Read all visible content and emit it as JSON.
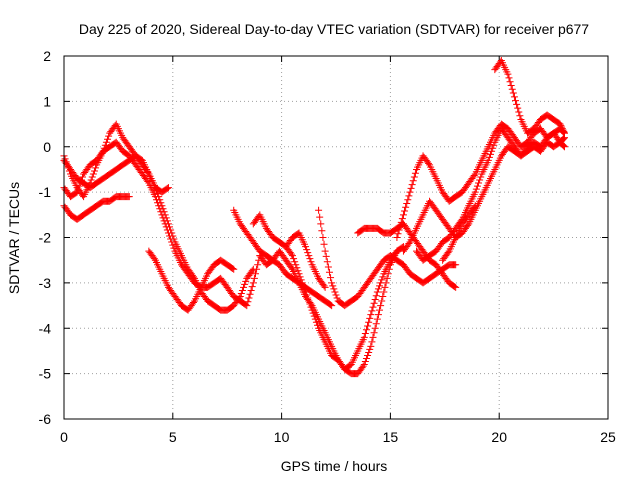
{
  "chart_data": {
    "type": "scatter",
    "title": "Day 225 of 2020, Sidereal Day-to-day VTEC variation (SDTVAR) for receiver p677",
    "xlabel": "GPS time / hours",
    "ylabel": "SDTVAR / TECUs",
    "xlim": [
      0,
      25
    ],
    "ylim": [
      -6,
      2
    ],
    "xticks": [
      0,
      5,
      10,
      15,
      20,
      25
    ],
    "yticks": [
      -6,
      -5,
      -4,
      -3,
      -2,
      -1,
      0,
      1,
      2
    ],
    "grid": true,
    "marker": "+",
    "color": "#ff0000",
    "series": [
      {
        "x": [
          0.0,
          0.3,
          0.6,
          0.9,
          1.2,
          1.5,
          1.8,
          2.1,
          2.4,
          2.7,
          3.0,
          3.3,
          3.6,
          3.9,
          4.2,
          4.5,
          4.8,
          5.1,
          5.4,
          5.7,
          6.0,
          6.3,
          6.6,
          6.9,
          7.2,
          7.5,
          7.8,
          8.1,
          8.4,
          8.7,
          9.0
        ],
        "y": [
          -0.9,
          -1.1,
          -1.0,
          -0.6,
          -0.4,
          -0.3,
          -0.1,
          0.0,
          0.1,
          -0.1,
          -0.2,
          -0.4,
          -0.6,
          -0.8,
          -1.1,
          -1.5,
          -1.9,
          -2.3,
          -2.6,
          -2.8,
          -3.0,
          -3.1,
          -3.1,
          -3.0,
          -2.9,
          -3.1,
          -3.3,
          -3.4,
          -3.5,
          -3.0,
          -2.4
        ]
      },
      {
        "x": [
          0.0,
          0.3,
          0.6,
          0.9,
          1.2,
          1.5,
          1.8,
          2.1,
          2.4,
          2.7,
          3.0,
          3.3,
          3.6,
          3.9,
          4.2,
          4.5,
          4.8,
          5.1,
          5.4,
          5.7,
          6.0,
          6.3,
          6.6,
          6.9,
          7.2,
          7.5,
          7.8,
          8.1,
          8.4,
          8.7
        ],
        "y": [
          -0.2,
          -0.6,
          -0.9,
          -1.1,
          -0.8,
          -0.4,
          -0.1,
          0.3,
          0.5,
          0.2,
          0.0,
          -0.2,
          -0.4,
          -0.6,
          -0.9,
          -1.3,
          -1.7,
          -2.1,
          -2.4,
          -2.7,
          -2.9,
          -3.2,
          -3.4,
          -3.5,
          -3.6,
          -3.6,
          -3.5,
          -3.3,
          -2.9,
          -2.7
        ]
      },
      {
        "x": [
          0.0,
          0.3,
          0.6,
          0.9,
          1.2,
          1.5,
          1.8,
          2.1,
          2.4,
          2.7,
          3.0
        ],
        "y": [
          -1.3,
          -1.5,
          -1.6,
          -1.5,
          -1.4,
          -1.3,
          -1.2,
          -1.2,
          -1.1,
          -1.1,
          -1.1
        ]
      },
      {
        "x": [
          0.0,
          0.3,
          0.6,
          0.9,
          1.2,
          1.5,
          1.8,
          2.1,
          2.4,
          2.7,
          3.0,
          3.3,
          3.6,
          3.9,
          4.2,
          4.5,
          4.8
        ],
        "y": [
          -0.3,
          -0.5,
          -0.7,
          -0.8,
          -0.9,
          -0.8,
          -0.7,
          -0.6,
          -0.5,
          -0.4,
          -0.3,
          -0.2,
          -0.3,
          -0.6,
          -0.9,
          -1.0,
          -0.9
        ]
      },
      {
        "x": [
          3.9,
          4.2,
          4.5,
          4.8,
          5.1,
          5.4,
          5.7,
          6.0,
          6.3,
          6.6,
          6.9,
          7.2,
          7.5,
          7.8
        ],
        "y": [
          -2.3,
          -2.5,
          -2.8,
          -3.1,
          -3.3,
          -3.5,
          -3.6,
          -3.4,
          -3.1,
          -2.8,
          -2.6,
          -2.5,
          -2.6,
          -2.7
        ]
      },
      {
        "x": [
          7.8,
          8.1,
          8.4,
          8.7,
          9.0,
          9.3,
          9.6,
          9.9,
          10.2,
          10.5,
          10.8,
          11.1,
          11.4,
          11.7,
          12.0,
          12.3
        ],
        "y": [
          -1.4,
          -1.7,
          -1.9,
          -2.1,
          -2.3,
          -2.4,
          -2.5,
          -2.6,
          -2.8,
          -2.9,
          -3.0,
          -3.1,
          -3.2,
          -3.3,
          -3.4,
          -3.5
        ]
      },
      {
        "x": [
          8.7,
          9.0,
          9.3,
          9.6,
          9.9,
          10.2,
          10.5,
          10.8,
          11.1,
          11.4,
          11.7,
          12.0,
          12.3,
          12.6,
          12.9,
          13.2,
          13.5,
          13.8,
          14.1,
          14.4,
          14.7,
          15.0,
          15.3
        ],
        "y": [
          -1.7,
          -1.5,
          -1.8,
          -2.0,
          -2.1,
          -2.2,
          -2.4,
          -2.8,
          -3.2,
          -3.6,
          -4.0,
          -4.3,
          -4.6,
          -4.7,
          -4.9,
          -5.0,
          -5.0,
          -4.8,
          -4.4,
          -3.8,
          -3.2,
          -2.6,
          -2.3
        ]
      },
      {
        "x": [
          9.0,
          9.3,
          9.6,
          9.9,
          10.2,
          10.5,
          10.8,
          11.1,
          11.4,
          11.7,
          12.0,
          12.3,
          12.6,
          12.9,
          13.2,
          13.5,
          13.8,
          14.1,
          14.4,
          14.7,
          15.0,
          15.3,
          15.6
        ],
        "y": [
          -2.4,
          -2.6,
          -2.5,
          -2.3,
          -2.5,
          -2.7,
          -3.0,
          -3.3,
          -3.5,
          -3.8,
          -4.1,
          -4.4,
          -4.7,
          -4.9,
          -4.8,
          -4.5,
          -4.2,
          -3.7,
          -3.2,
          -2.8,
          -2.5,
          -2.3,
          -2.2
        ]
      },
      {
        "x": [
          10.2,
          10.5,
          10.8,
          11.1,
          11.4,
          11.7,
          12.0
        ],
        "y": [
          -2.2,
          -2.0,
          -1.9,
          -2.2,
          -2.6,
          -2.9,
          -3.1
        ]
      },
      {
        "x": [
          11.7,
          12.0,
          12.3,
          12.6,
          12.9,
          13.2,
          13.5,
          13.8,
          14.1,
          14.4,
          14.7,
          15.0,
          15.3,
          15.6,
          15.9,
          16.2,
          16.5,
          16.8,
          17.1,
          17.4,
          17.7,
          18.0
        ],
        "y": [
          -1.4,
          -2.3,
          -3.0,
          -3.4,
          -3.5,
          -3.4,
          -3.3,
          -3.1,
          -2.9,
          -2.7,
          -2.5,
          -2.4,
          -2.5,
          -2.6,
          -2.8,
          -2.9,
          -3.0,
          -2.9,
          -2.8,
          -2.7,
          -2.6,
          -2.6
        ]
      },
      {
        "x": [
          13.5,
          13.8,
          14.1,
          14.4,
          14.7,
          15.0,
          15.3,
          15.6,
          15.9,
          16.2,
          16.5,
          16.8,
          17.1,
          17.4,
          17.7,
          18.0
        ],
        "y": [
          -1.9,
          -1.8,
          -1.8,
          -1.8,
          -1.9,
          -1.9,
          -1.8,
          -1.7,
          -1.9,
          -2.1,
          -2.3,
          -2.5,
          -2.6,
          -2.8,
          -3.0,
          -3.1
        ]
      },
      {
        "x": [
          15.3,
          15.6,
          15.9,
          16.2,
          16.5,
          16.8,
          17.1,
          17.4,
          17.7,
          18.0,
          18.3,
          18.6,
          18.9,
          19.2,
          19.5,
          19.8,
          20.1,
          20.4,
          20.7,
          21.0,
          21.3,
          21.6,
          21.9,
          22.2,
          22.5,
          22.8,
          23.0
        ],
        "y": [
          -2.0,
          -1.5,
          -1.0,
          -0.5,
          -0.2,
          -0.4,
          -0.7,
          -1.0,
          -1.2,
          -1.1,
          -1.0,
          -0.8,
          -0.6,
          -0.3,
          0.0,
          0.3,
          0.5,
          0.4,
          0.2,
          0.0,
          0.1,
          0.3,
          0.4,
          0.2,
          0.3,
          0.4,
          0.3
        ]
      },
      {
        "x": [
          15.6,
          15.9,
          16.2,
          16.5,
          16.8,
          17.1,
          17.4,
          17.7,
          18.0,
          18.3,
          18.6,
          18.9,
          19.2,
          19.5,
          19.8,
          20.1,
          20.4,
          20.7,
          21.0,
          21.3,
          21.6,
          21.9,
          22.2,
          22.5,
          22.8,
          23.0
        ],
        "y": [
          -2.3,
          -2.1,
          -1.8,
          -1.5,
          -1.2,
          -1.4,
          -1.6,
          -1.8,
          -2.0,
          -1.9,
          -1.7,
          -1.4,
          -1.1,
          -0.8,
          -0.5,
          -0.2,
          0.0,
          -0.1,
          -0.2,
          0.0,
          0.1,
          0.0,
          0.2,
          0.3,
          0.1,
          0.2
        ]
      },
      {
        "x": [
          16.2,
          16.5,
          16.8,
          17.1,
          17.4,
          17.7,
          18.0,
          18.3,
          18.6,
          18.9,
          19.2,
          19.5,
          19.8,
          20.1,
          20.4,
          20.7,
          21.0,
          21.3,
          21.6,
          21.9,
          22.2,
          22.5,
          22.8,
          23.0
        ],
        "y": [
          -2.3,
          -2.5,
          -2.4,
          -2.3,
          -2.1,
          -2.0,
          -1.8,
          -1.6,
          -1.3,
          -1.0,
          -0.6,
          -0.3,
          0.1,
          0.4,
          0.2,
          0.0,
          -0.2,
          -0.1,
          0.0,
          -0.1,
          0.1,
          0.0,
          0.1,
          0.0
        ]
      },
      {
        "x": [
          17.4,
          17.7,
          18.0,
          18.3,
          18.6,
          18.9
        ],
        "y": [
          -2.5,
          -2.3,
          -2.0,
          -1.7,
          -1.5,
          -1.3
        ]
      },
      {
        "x": [
          19.8,
          20.1,
          20.4,
          20.7,
          21.0,
          21.3,
          21.6,
          21.9,
          22.2,
          22.5,
          22.8,
          23.0
        ],
        "y": [
          1.7,
          1.9,
          1.6,
          1.1,
          0.6,
          0.3,
          0.4,
          0.6,
          0.7,
          0.6,
          0.5,
          0.3
        ]
      }
    ]
  }
}
